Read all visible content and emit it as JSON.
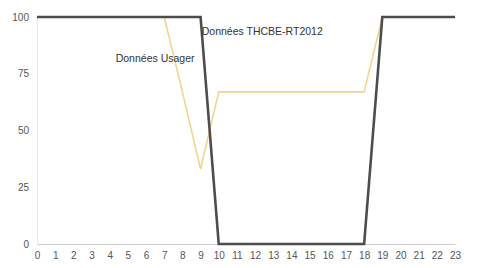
{
  "chart_data": {
    "type": "line",
    "x": [
      0,
      1,
      2,
      3,
      4,
      5,
      6,
      7,
      8,
      9,
      10,
      11,
      12,
      13,
      14,
      15,
      16,
      17,
      18,
      19,
      20,
      21,
      22,
      23
    ],
    "series": [
      {
        "name": "Données THCBE-RT2012",
        "color": "#4d4d4d",
        "values": [
          100,
          100,
          100,
          100,
          100,
          100,
          100,
          100,
          100,
          100,
          0,
          0,
          0,
          0,
          0,
          0,
          0,
          0,
          0,
          100,
          100,
          100,
          100,
          100
        ]
      },
      {
        "name": "Données Usager",
        "color": "#f2d48e",
        "values": [
          100,
          100,
          100,
          100,
          100,
          100,
          100,
          100,
          67,
          33,
          67,
          67,
          67,
          67,
          67,
          67,
          67,
          67,
          67,
          100,
          100,
          100,
          100,
          100
        ]
      }
    ],
    "xlim": [
      0,
      23
    ],
    "xticks": [
      0,
      1,
      2,
      3,
      4,
      5,
      6,
      7,
      8,
      9,
      10,
      11,
      12,
      13,
      14,
      15,
      16,
      17,
      18,
      19,
      20,
      21,
      22,
      23
    ],
    "ylim": [
      0,
      100
    ],
    "yticks": [
      0,
      25,
      50,
      75,
      100
    ],
    "grid": false
  }
}
